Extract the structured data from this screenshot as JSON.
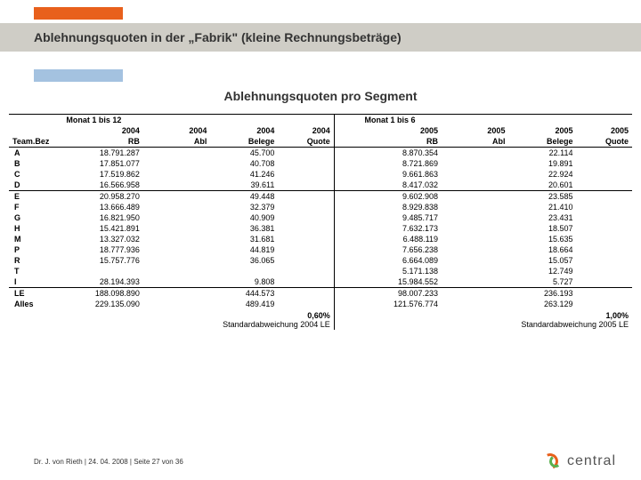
{
  "colors": {
    "orange": "#e8601c",
    "blue": "#a4c2e0",
    "band": "#cfcdc6",
    "green": "#5bb04f"
  },
  "title": "Ablehnungsquoten in der „Fabrik\" (kleine Rechnungsbeträge)",
  "subtitle": "Ablehnungsquoten pro Segment",
  "header": {
    "left_span": "Monat 1 bis 12",
    "right_span": "Monat 1 bis 6",
    "team": "Team.Bez",
    "yr_l": "2004",
    "yr_r": "2005",
    "c_rb": "RB",
    "c_abl": "Abl",
    "c_bel": "Belege",
    "c_quote": "Quote"
  },
  "rows": [
    {
      "t": "A",
      "rb1": "18.791.287",
      "abl1": "",
      "bel1": "45.700",
      "q1": "",
      "rb2": "8.870.354",
      "abl2": "",
      "bel2": "22.114",
      "q2": ""
    },
    {
      "t": "B",
      "rb1": "17.851.077",
      "abl1": "",
      "bel1": "40.708",
      "q1": "",
      "rb2": "8.721.869",
      "abl2": "",
      "bel2": "19.891",
      "q2": ""
    },
    {
      "t": "C",
      "rb1": "17.519.862",
      "abl1": "",
      "bel1": "41.246",
      "q1": "",
      "rb2": "9.661.863",
      "abl2": "",
      "bel2": "22.924",
      "q2": ""
    },
    {
      "t": "D",
      "rb1": "16.566.958",
      "abl1": "",
      "bel1": "39.611",
      "q1": "",
      "rb2": "8.417.032",
      "abl2": "",
      "bel2": "20.601",
      "q2": ""
    },
    {
      "t": "E",
      "rb1": "20.958.270",
      "abl1": "",
      "bel1": "49.448",
      "q1": "",
      "rb2": "9.602.908",
      "abl2": "",
      "bel2": "23.585",
      "q2": ""
    },
    {
      "t": "F",
      "rb1": "13.666.489",
      "abl1": "",
      "bel1": "32.379",
      "q1": "",
      "rb2": "8.929.838",
      "abl2": "",
      "bel2": "21.410",
      "q2": ""
    },
    {
      "t": "G",
      "rb1": "16.821.950",
      "abl1": "",
      "bel1": "40.909",
      "q1": "",
      "rb2": "9.485.717",
      "abl2": "",
      "bel2": "23.431",
      "q2": ""
    },
    {
      "t": "H",
      "rb1": "15.421.891",
      "abl1": "",
      "bel1": "36.381",
      "q1": "",
      "rb2": "7.632.173",
      "abl2": "",
      "bel2": "18.507",
      "q2": ""
    },
    {
      "t": "M",
      "rb1": "13.327.032",
      "abl1": "",
      "bel1": "31.681",
      "q1": "",
      "rb2": "6.488.119",
      "abl2": "",
      "bel2": "15.635",
      "q2": ""
    },
    {
      "t": "P",
      "rb1": "18.777.936",
      "abl1": "",
      "bel1": "44.819",
      "q1": "",
      "rb2": "7.656.238",
      "abl2": "",
      "bel2": "18.664",
      "q2": ""
    },
    {
      "t": "R",
      "rb1": "15.757.776",
      "abl1": "",
      "bel1": "36.065",
      "q1": "",
      "rb2": "6.664.089",
      "abl2": "",
      "bel2": "15.057",
      "q2": ""
    },
    {
      "t": "T",
      "rb1": "",
      "abl1": "",
      "bel1": "",
      "q1": "",
      "rb2": "5.171.138",
      "abl2": "",
      "bel2": "12.749",
      "q2": ""
    },
    {
      "t": "I",
      "rb1": "28.194.393",
      "abl1": "",
      "bel1": "9.808",
      "q1": "",
      "rb2": "15.984.552",
      "abl2": "",
      "bel2": "5.727",
      "q2": ""
    }
  ],
  "le": {
    "t": "LE",
    "rb1": "188.098.890",
    "abl1": "",
    "bel1": "444.573",
    "q1": "",
    "rb2": "98.007.233",
    "abl2": "",
    "bel2": "236.193",
    "q2": ""
  },
  "alles": {
    "t": "Alles",
    "rb1": "229.135.090",
    "abl1": "",
    "bel1": "489.419",
    "q1": "",
    "rb2": "121.576.774",
    "abl2": "",
    "bel2": "263.129",
    "q2": ""
  },
  "std": {
    "l_pct": "0,60%",
    "l_txt": "Standardabweichung 2004 LE",
    "r_pct": "1,00%",
    "r_txt": "Standardabweichung 2005 LE"
  },
  "footer": "Dr. J. von Rieth | 24. 04. 2008 | Seite 27 von 36",
  "logo_text": "central"
}
